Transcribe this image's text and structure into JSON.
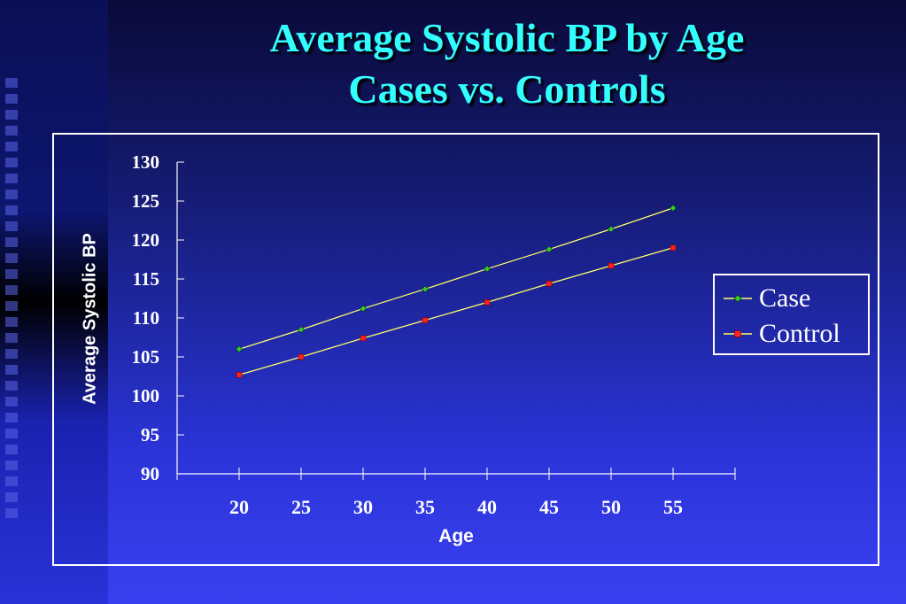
{
  "slide": {
    "title_line1": "Average Systolic BP by Age",
    "title_line2": "Cases vs. Controls"
  },
  "colors": {
    "title": "#33ffff",
    "line": "#ffff66",
    "case_marker": "#33cc33",
    "control_marker": "#ff2020",
    "axis": "#ffffff"
  },
  "chart_data": {
    "type": "line",
    "xlabel": "Age",
    "ylabel": "Average Systolic BP",
    "x": [
      20,
      25,
      30,
      35,
      40,
      45,
      50,
      55
    ],
    "x_ticks": [
      20,
      25,
      30,
      35,
      40,
      45,
      50,
      55
    ],
    "y_ticks": [
      90,
      95,
      100,
      105,
      110,
      115,
      120,
      125,
      130
    ],
    "ylim": [
      90,
      130
    ],
    "xlim": [
      15,
      60
    ],
    "grid": false,
    "legend_position": "right",
    "series": [
      {
        "name": "Case",
        "marker": "diamond",
        "values": [
          106,
          108.5,
          111.2,
          113.7,
          116.3,
          118.8,
          121.4,
          124.1
        ]
      },
      {
        "name": "Control",
        "marker": "square",
        "values": [
          102.7,
          105.0,
          107.4,
          109.7,
          112.0,
          114.4,
          116.7,
          119.0
        ]
      }
    ]
  }
}
